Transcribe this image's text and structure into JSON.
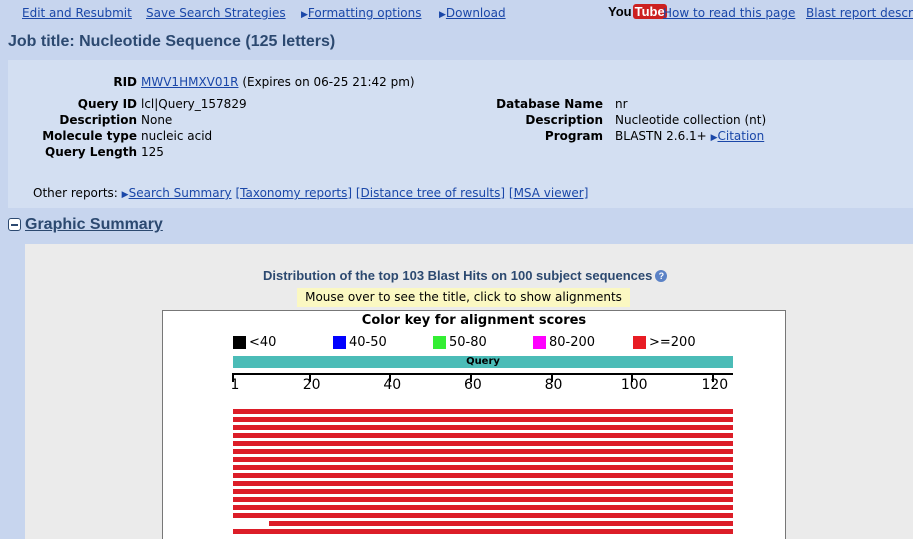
{
  "toolbar": {
    "edit_resubmit": "Edit and Resubmit",
    "save_strategies": "Save Search Strategies",
    "formatting_options": "Formatting options",
    "download": "Download",
    "youtube_left": "You",
    "youtube_right": "Tube",
    "how_to_read": "How to read this page",
    "blast_report_desc": "Blast report descri"
  },
  "job_title": "Job title: Nucleotide Sequence (125 letters)",
  "info": {
    "rid_label": "RID",
    "rid_value": "MWV1HMXV01R",
    "rid_expires": "(Expires on 06-25 21:42 pm)",
    "query_id_label": "Query ID",
    "query_id_value": "lcl|Query_157829",
    "description_label": "Description",
    "description_value": "None",
    "molecule_type_label": "Molecule type",
    "molecule_type_value": "nucleic acid",
    "query_length_label": "Query Length",
    "query_length_value": "125",
    "database_name_label": "Database Name",
    "database_name_value": "nr",
    "db_description_label": "Description",
    "db_description_value": "Nucleotide collection (nt)",
    "program_label": "Program",
    "program_value": "BLASTN 2.6.1+",
    "citation": "Citation"
  },
  "other_reports": {
    "label": "Other reports:",
    "search_summary": "Search Summary",
    "taxonomy": "[Taxonomy reports]",
    "distance_tree": "[Distance tree of results]",
    "msa_viewer": "[MSA viewer]"
  },
  "graphic_summary": {
    "title": "Graphic Summary",
    "distribution_title": "Distribution of the top 103 Blast Hits on 100 subject sequences",
    "hint": "Mouse over to see the title, click to show alignments",
    "color_key_title": "Color key for alignment scores",
    "color_key": [
      {
        "label": "<40",
        "color": "#000000"
      },
      {
        "label": "40-50",
        "color": "#0000ff"
      },
      {
        "label": "50-80",
        "color": "#33ee33"
      },
      {
        "label": "80-200",
        "color": "#ff00ff"
      },
      {
        "label": ">=200",
        "color": "#e81c24"
      }
    ],
    "query_label": "Query",
    "axis_ticks": [
      "1",
      "20",
      "40",
      "60",
      "80",
      "100",
      "120"
    ],
    "hit_color": "#dc1d28"
  }
}
